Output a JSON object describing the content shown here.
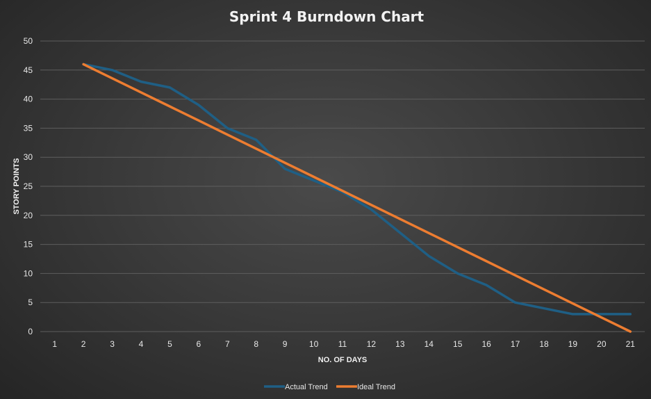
{
  "chart_data": {
    "type": "line",
    "title": "Sprint 4 Burndown Chart",
    "xlabel": "NO. OF DAYS",
    "ylabel": "STORY POINTS",
    "categories": [
      "1",
      "2",
      "3",
      "4",
      "5",
      "6",
      "7",
      "8",
      "9",
      "10",
      "11",
      "12",
      "13",
      "14",
      "15",
      "16",
      "17",
      "18",
      "19",
      "20",
      "21"
    ],
    "ylim": [
      0,
      50
    ],
    "yticks": [
      0,
      5,
      10,
      15,
      20,
      25,
      30,
      35,
      40,
      45,
      50
    ],
    "grid": true,
    "legend_position": "bottom",
    "series": [
      {
        "name": "Actual Trend",
        "color": "#1f5f85",
        "values": [
          null,
          46,
          45,
          43,
          42,
          39,
          35,
          33,
          28,
          26,
          24,
          21,
          17,
          13,
          10,
          8,
          5,
          4,
          3,
          3,
          3
        ]
      },
      {
        "name": "Ideal Trend",
        "color": "#ed7d31",
        "values": [
          null,
          46,
          43.58,
          41.16,
          38.74,
          36.32,
          33.89,
          31.47,
          29.05,
          26.63,
          24.21,
          21.79,
          19.37,
          16.95,
          14.53,
          12.11,
          9.68,
          7.26,
          4.84,
          2.42,
          0
        ]
      }
    ]
  }
}
